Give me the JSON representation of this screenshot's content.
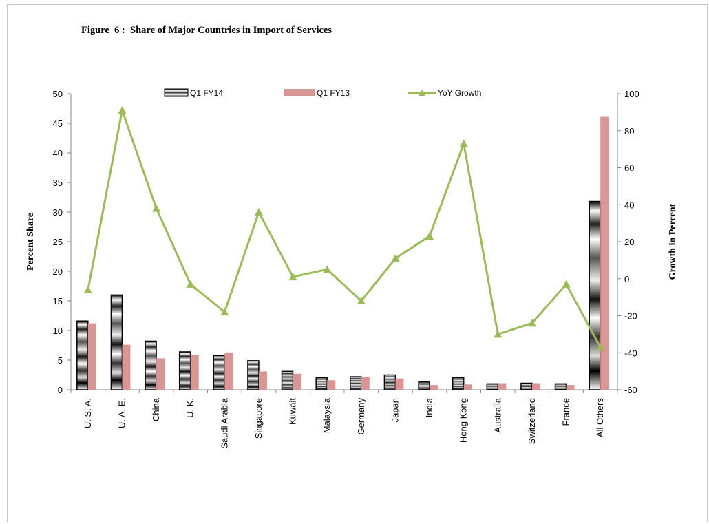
{
  "figure": {
    "title": "Figure  6 :  Share of Major Countries in Import of Services"
  },
  "chart_data": {
    "type": "bar",
    "title": "Figure  6 :  Share of Major Countries in Import of Services",
    "ylabel": "Percent Share",
    "y2label": "Growth in Percent",
    "ylim": [
      0,
      50
    ],
    "y2lim": [
      -60,
      100
    ],
    "yticks": [
      0,
      5,
      10,
      15,
      20,
      25,
      30,
      35,
      40,
      45,
      50
    ],
    "y2ticks": [
      -60,
      -40,
      -20,
      0,
      20,
      40,
      60,
      80,
      100
    ],
    "grid": false,
    "legend_position": "top",
    "categories": [
      "U. S. A.",
      "U. A. E.",
      "China",
      "U. K.",
      "Saudi Arabia",
      "Singapore",
      "Kuwait",
      "Malaysia",
      "Germany",
      "Japan",
      "India",
      "Hong Kong",
      "Australia",
      "Switzerland",
      "France",
      "All Others"
    ],
    "series": [
      {
        "name": "Q1 FY14",
        "kind": "bar",
        "axis": "left",
        "values": [
          11.6,
          16.0,
          8.2,
          6.4,
          5.8,
          4.9,
          3.1,
          2.0,
          2.2,
          2.5,
          1.3,
          2.0,
          1.0,
          1.1,
          1.0,
          31.8
        ]
      },
      {
        "name": "Q1 FY13",
        "kind": "bar",
        "axis": "left",
        "color": "#d99694",
        "values": [
          11.2,
          7.6,
          5.3,
          5.9,
          6.3,
          3.1,
          2.7,
          1.6,
          2.1,
          1.9,
          0.8,
          0.9,
          1.1,
          1.1,
          0.8,
          46.1
        ]
      },
      {
        "name": "YoY Growth",
        "kind": "line",
        "axis": "right",
        "color": "#9bbb59",
        "values": [
          -6,
          91,
          38,
          -3,
          -18,
          36,
          1,
          5,
          -12,
          11,
          23,
          73,
          -30,
          -24,
          -3,
          -37
        ]
      }
    ]
  }
}
